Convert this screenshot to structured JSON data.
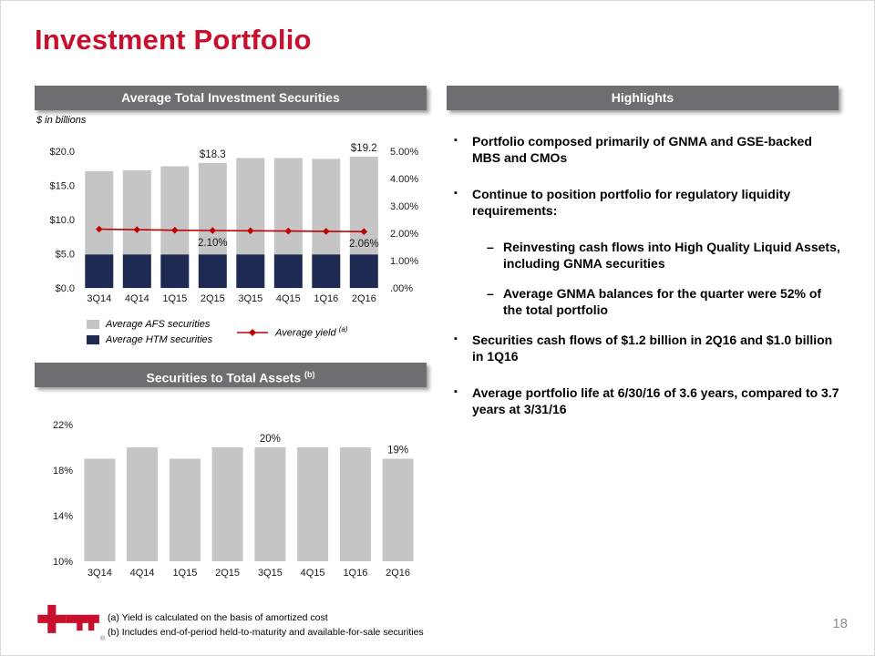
{
  "slide": {
    "title": "Investment Portfolio",
    "page_number": "18"
  },
  "colors": {
    "title_red": "#C8102E",
    "header_bg": "#6D6E71",
    "afs_bar": "#C5C5C5",
    "htm_bar": "#1F2A52",
    "yield_line": "#C00000",
    "page_number_gray": "#8A8C8E"
  },
  "left_panel": {
    "chart1_header": "Average Total Investment Securities",
    "units_label": "$ in billions",
    "legend": {
      "afs": "Average AFS securities",
      "htm": "Average HTM securities",
      "yield": "Average yield",
      "yield_sup": "(a)"
    },
    "chart2_header": "Securities to Total Assets ",
    "chart2_header_sup": "(b)"
  },
  "highlights": {
    "header": "Highlights",
    "items": [
      {
        "level": 1,
        "text": "Portfolio composed primarily of GNMA and GSE-backed MBS and CMOs"
      },
      {
        "level": 1,
        "text": "Continue to position portfolio for regulatory liquidity requirements:"
      },
      {
        "level": 2,
        "text": "Reinvesting cash flows into High Quality Liquid Assets, including GNMA securities"
      },
      {
        "level": 2,
        "text": "Average GNMA balances for the quarter were 52% of the total portfolio"
      },
      {
        "level": 1,
        "text": "Securities cash flows of $1.2 billion in 2Q16 and $1.0 billion in 1Q16"
      },
      {
        "level": 1,
        "text": "Average portfolio life at 6/30/16 of 3.6 years, compared to 3.7 years at 3/31/16"
      }
    ]
  },
  "footnotes": [
    "(a)  Yield is calculated on the basis of amortized cost",
    "(b)  Includes end-of-period held-to-maturity and available-for-sale securities"
  ],
  "chart_data": [
    {
      "type": "stacked-bar-line",
      "title": "Average Total Investment Securities",
      "units": "$ in billions",
      "categories": [
        "3Q14",
        "4Q14",
        "1Q15",
        "2Q15",
        "3Q15",
        "4Q15",
        "1Q16",
        "2Q16"
      ],
      "series": [
        {
          "name": "Average HTM securities",
          "color_key": "htm_bar",
          "values": [
            4.9,
            4.9,
            4.9,
            4.9,
            4.9,
            4.9,
            4.9,
            4.9
          ]
        },
        {
          "name": "Average AFS securities",
          "color_key": "afs_bar",
          "values": [
            12.2,
            12.3,
            12.9,
            13.4,
            14.1,
            14.1,
            14.0,
            14.3
          ]
        }
      ],
      "line_series": {
        "name": "Average yield",
        "values": [
          2.15,
          2.13,
          2.11,
          2.1,
          2.09,
          2.08,
          2.07,
          2.06
        ]
      },
      "bar_labels": {
        "3": "$18.3",
        "7": "$19.2"
      },
      "line_labels": {
        "3": "2.10%",
        "7": "2.06%"
      },
      "left_axis": {
        "min": 0,
        "max": 20,
        "ticks": [
          "$20.0",
          "$15.0",
          "$10.0",
          "$5.0",
          "$0.0"
        ]
      },
      "right_axis": {
        "min": 0,
        "max": 5,
        "ticks": [
          "5.00%",
          "4.00%",
          "3.00%",
          "2.00%",
          "1.00%",
          ".00%"
        ]
      },
      "legend_position": "bottom",
      "grid": false
    },
    {
      "type": "bar",
      "title": "Securities to Total Assets (b)",
      "categories": [
        "3Q14",
        "4Q14",
        "1Q15",
        "2Q15",
        "3Q15",
        "4Q15",
        "1Q16",
        "2Q16"
      ],
      "values": [
        19,
        20,
        19,
        20,
        20,
        20,
        20,
        19
      ],
      "bar_labels": {
        "4": "20%",
        "7": "19%"
      },
      "y_axis": {
        "min": 10,
        "max": 22,
        "ticks": [
          "22%",
          "18%",
          "14%",
          "10%"
        ]
      },
      "grid": false
    }
  ]
}
